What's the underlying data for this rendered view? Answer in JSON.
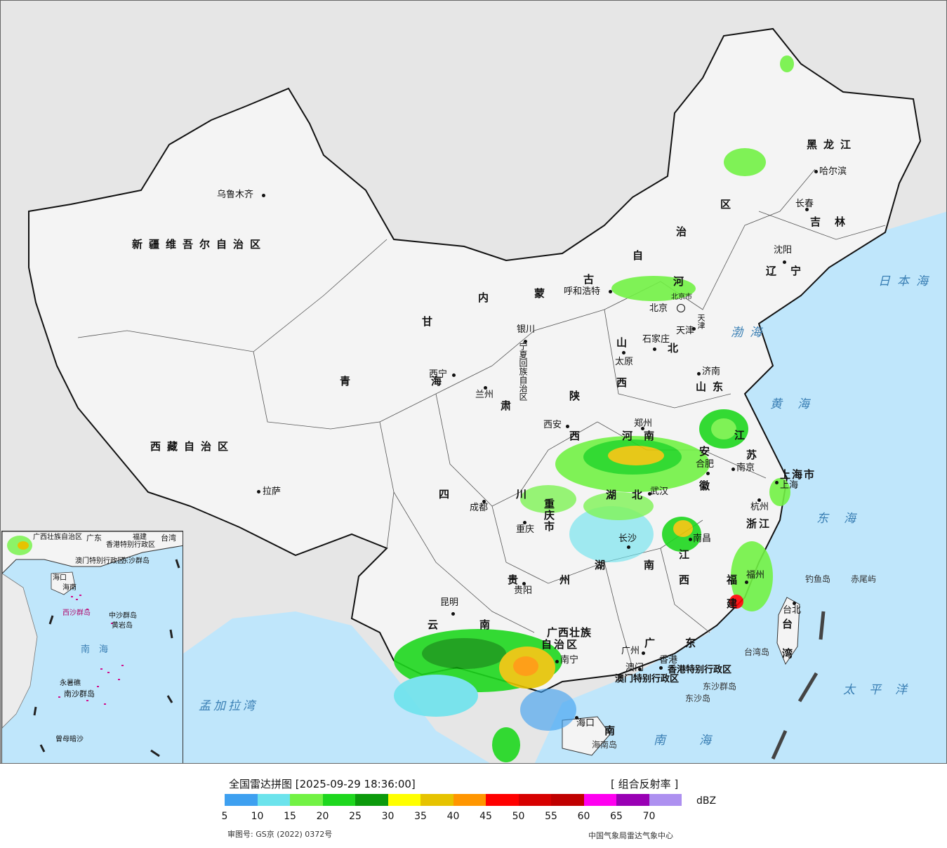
{
  "map": {
    "provinces": [
      "新疆维吾尔自治区",
      "西藏自治区",
      "青海",
      "甘肃",
      "内蒙古自治区",
      "黑龙江",
      "吉林",
      "辽宁",
      "河北",
      "山西",
      "山东",
      "河南",
      "江苏",
      "安徽",
      "上海市",
      "浙江",
      "湖北",
      "重庆市",
      "四川",
      "贵州",
      "湖南",
      "江西",
      "福建",
      "云南",
      "广西壮族自治区",
      "广东",
      "海南",
      "台湾",
      "陕西",
      "宁夏回族自治区",
      "天津",
      "北京市"
    ],
    "province_parts": {
      "xinjiang": "新疆维吾尔自治区",
      "xizang": "西藏自治区",
      "qinghai": "青　海",
      "gansu": "甘",
      "gansu2": "肃",
      "neimeng1": "内",
      "neimeng2": "蒙",
      "neimeng3": "古",
      "neimeng4": "自",
      "neimeng5": "治",
      "neimeng6": "区",
      "heilongjiang": "黑龙江",
      "jilin": "吉林",
      "liaoning": "辽宁",
      "hebei1": "河",
      "hebei2": "北",
      "shanxi1": "山",
      "shanxi2": "西",
      "shandong": "山东",
      "henan": "河南",
      "jiangsu1": "江",
      "jiangsu2": "苏",
      "anhui1": "安",
      "anhui2": "徽",
      "shanghai": "上海市",
      "zhejiang": "浙江",
      "hubei": "湖北",
      "chongqing1": "重",
      "chongqing2": "庆",
      "chongqing3": "市",
      "sichuan": "四　川",
      "guizhou": "贵　州",
      "hunan": "湖　南",
      "jiangxi1": "江",
      "jiangxi2": "西",
      "fujian": "福",
      "fujian2": "建",
      "yunnan": "云　南",
      "guangxi1": "广西壮族",
      "guangxi2": "自治区",
      "guangdong": "广　东",
      "hainan": "南",
      "taiwan": "台　湾",
      "shaanxi1": "陕",
      "shaanxi2": "西",
      "ningxia": "宁夏回族自治区",
      "tianjin": "天津",
      "beijing": "北京市"
    },
    "cities": {
      "urumqi": "乌鲁木齐",
      "lhasa": "拉萨",
      "xining": "西宁",
      "lanzhou": "兰州",
      "yinchuan": "银川",
      "hohhot": "呼和浩特",
      "beijing": "北京",
      "tianjin": "天津",
      "shijiazhuang": "石家庄",
      "taiyuan": "太原",
      "jinan": "济南",
      "zhengzhou": "郑州",
      "xian": "西安",
      "hefei": "合肥",
      "nanjing": "南京",
      "shanghai": "上海",
      "hangzhou": "杭州",
      "wuhan": "武汉",
      "chengdu": "成都",
      "chongqing": "重庆",
      "guiyang": "贵阳",
      "changsha": "长沙",
      "nanchang": "南昌",
      "fuzhou": "福州",
      "kunming": "昆明",
      "nanning": "南宁",
      "guangzhou": "广州",
      "hongkong": "香港",
      "macau": "澳门",
      "haikou": "海口",
      "taibei": "台北",
      "harbin": "哈尔滨",
      "changchun": "长春",
      "shenyang": "沈阳"
    },
    "sars": {
      "hk": "香港特别行政区",
      "mo": "澳门特别行政区"
    },
    "seas": {
      "japan_sea": "日本海",
      "bohai": "渤海",
      "yellow_sea": "黄海",
      "east_sea": "东海",
      "pacific": "太平洋",
      "south_sea": "南海",
      "bengal": "孟加拉湾"
    },
    "islands": {
      "diaoyu": "钓鱼岛",
      "chiwei": "赤尾屿",
      "dongsha_islands": "东沙群岛",
      "dongsha": "东沙岛",
      "taiwan_island": "台湾岛",
      "hainan_island": "海南岛"
    },
    "inset": {
      "guangxi": "广西壮族自治区",
      "guangdong": "广东",
      "hk": "香港特别行政区",
      "mo": "澳门特别行政区",
      "dongsha": "东沙群岛",
      "taiwan": "台湾",
      "haikou": "海口",
      "hainan": "海南",
      "xisha": "西沙群岛",
      "zhongsha": "中沙群岛",
      "huangyan": "黄岩岛",
      "south_sea": "南　海",
      "nansha": "南沙群岛",
      "yongshu": "永暑礁",
      "zengmu": "曾母暗沙",
      "fubo": "福建"
    }
  },
  "legend": {
    "title": "全国雷达拼图 [2025-09-29 18:36:00]",
    "product": "[ 组合反射率 ]",
    "unit": "dBZ",
    "colors": [
      "#3ea0f0",
      "#6ce3ec",
      "#72f244",
      "#1ed71e",
      "#0c9a0c",
      "#ffff00",
      "#e6c300",
      "#ff9600",
      "#ff0000",
      "#d70000",
      "#c00000",
      "#ff00f0",
      "#9900b4",
      "#ad90f0"
    ],
    "ticks": [
      "5",
      "10",
      "15",
      "20",
      "25",
      "30",
      "35",
      "40",
      "45",
      "50",
      "55",
      "60",
      "65",
      "70"
    ],
    "review_number": "审图号: GS京 (2022) 0372号",
    "source": "中国气象局雷达气象中心"
  },
  "style_colors": {
    "sea": "#bfe6fb",
    "outside_land": "#e6e6e6",
    "china_land": "#f4f4f4"
  }
}
